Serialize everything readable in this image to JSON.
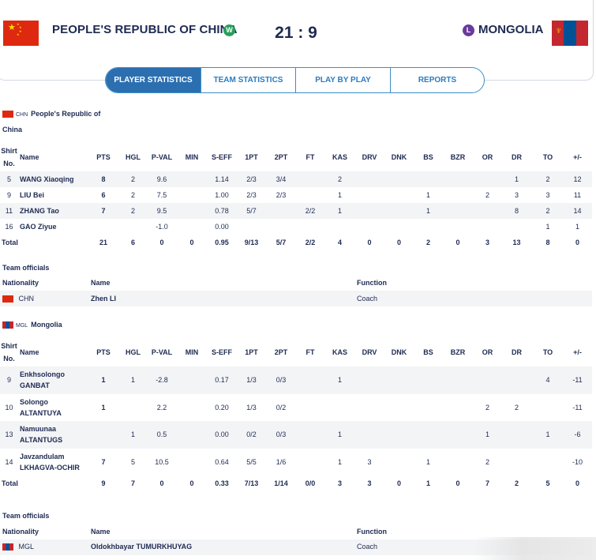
{
  "header": {
    "home_team": "PEOPLE'S REPUBLIC OF CHINA",
    "home_result": "W",
    "score": "21 : 9",
    "away_result": "L",
    "away_team": "MONGOLIA"
  },
  "tabs": [
    {
      "label": "PLAYER STATISTICS"
    },
    {
      "label": "TEAM STATISTICS"
    },
    {
      "label": "PLAY BY PLAY"
    },
    {
      "label": "REPORTS"
    }
  ],
  "columns": [
    "PTS",
    "HGL",
    "P-VAL",
    "MIN",
    "S-EFF",
    "1PT",
    "2PT",
    "FT",
    "KAS",
    "DRV",
    "DNK",
    "BS",
    "BZR",
    "OR",
    "DR",
    "TO",
    "+/-"
  ],
  "shirt_header_1": "Shirt",
  "shirt_header_2": "No.",
  "name_header": "Name",
  "team_home": {
    "code": "CHN",
    "name_line1": "People's Republic of",
    "name_line2": "China",
    "players": [
      {
        "no": "5",
        "name": "WANG Xiaoqing",
        "stats": [
          "8",
          "2",
          "9.6",
          "",
          "1.14",
          "2/3",
          "3/4",
          "",
          "2",
          "",
          "",
          "",
          "",
          "",
          "1",
          "2",
          "12"
        ]
      },
      {
        "no": "9",
        "name": "LIU Bei",
        "stats": [
          "6",
          "2",
          "7.5",
          "",
          "1.00",
          "2/3",
          "2/3",
          "",
          "1",
          "",
          "",
          "1",
          "",
          "2",
          "3",
          "3",
          "11"
        ]
      },
      {
        "no": "11",
        "name": "ZHANG Tao",
        "stats": [
          "7",
          "2",
          "9.5",
          "",
          "0.78",
          "5/7",
          "",
          "2/2",
          "1",
          "",
          "",
          "1",
          "",
          "",
          "8",
          "2",
          "14"
        ]
      },
      {
        "no": "16",
        "name": "GAO Ziyue",
        "stats": [
          "",
          "",
          "-1.0",
          "",
          "0.00",
          "",
          "",
          "",
          "",
          "",
          "",
          "",
          "",
          "",
          "",
          "1",
          "1"
        ]
      }
    ],
    "total_label": "Total",
    "totals": [
      "21",
      "6",
      "0",
      "0",
      "0.95",
      "9/13",
      "5/7",
      "2/2",
      "4",
      "0",
      "0",
      "2",
      "0",
      "3",
      "13",
      "8",
      "0"
    ],
    "officials_title": "Team officials",
    "officials_headers": {
      "nationality": "Nationality",
      "name": "Name",
      "function": "Function"
    },
    "official": {
      "nationality": "CHN",
      "name": "Zhen LI",
      "function": "Coach"
    }
  },
  "team_away": {
    "code": "MGL",
    "name_line1": "Mongolia",
    "players": [
      {
        "no": "9",
        "name1": "Enkhsolongo",
        "name2": "GANBAT",
        "stats": [
          "1",
          "1",
          "-2.8",
          "",
          "0.17",
          "1/3",
          "0/3",
          "",
          "1",
          "",
          "",
          "",
          "",
          "",
          "",
          "4",
          "-11"
        ]
      },
      {
        "no": "10",
        "name1": "Solongo",
        "name2": "ALTANTUYA",
        "stats": [
          "1",
          "",
          "2.2",
          "",
          "0.20",
          "1/3",
          "0/2",
          "",
          "",
          "",
          "",
          "",
          "",
          "2",
          "2",
          "",
          "-11"
        ]
      },
      {
        "no": "13",
        "name1": "Namuunaa",
        "name2": "ALTANTUGS",
        "stats": [
          "",
          "1",
          "0.5",
          "",
          "0.00",
          "0/2",
          "0/3",
          "",
          "1",
          "",
          "",
          "",
          "",
          "1",
          "",
          "1",
          "-6"
        ]
      },
      {
        "no": "14",
        "name1": "Javzandulam",
        "name2": "LKHAGVA-OCHIR",
        "stats": [
          "7",
          "5",
          "10.5",
          "",
          "0.64",
          "5/5",
          "1/6",
          "",
          "1",
          "3",
          "",
          "1",
          "",
          "2",
          "",
          "",
          "-10"
        ]
      }
    ],
    "total_label": "Total",
    "totals": [
      "9",
      "7",
      "0",
      "0",
      "0.33",
      "7/13",
      "1/14",
      "0/0",
      "3",
      "3",
      "0",
      "1",
      "0",
      "7",
      "2",
      "5",
      "0"
    ],
    "officials_title": "Team officials",
    "officials_headers": {
      "nationality": "Nationality",
      "name": "Name",
      "function": "Function"
    },
    "official": {
      "nationality": "MGL",
      "name": "Oldokhbayar TUMURKHUYAG",
      "function": "Coach"
    }
  },
  "colors": {
    "navy": "#1e2a52",
    "accent": "#2c6fb0",
    "win": "#27a05a",
    "loss": "#6a3a9c"
  },
  "icons": [
    "china-flag-icon",
    "mongolia-flag-icon",
    "win-badge-icon",
    "loss-badge-icon"
  ]
}
